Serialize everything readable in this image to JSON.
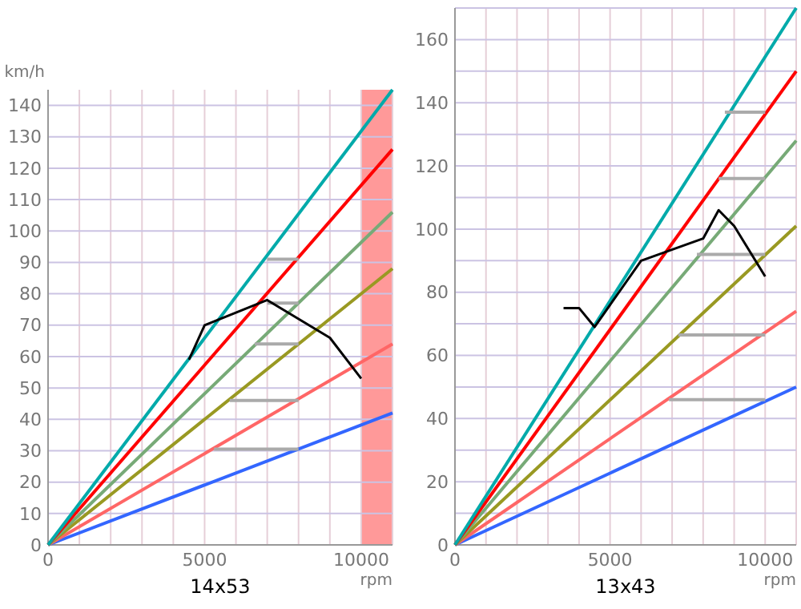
{
  "chart_data": [
    {
      "type": "line",
      "title": "14x53",
      "xlabel": "rpm",
      "ylabel": "km/h",
      "xlim": [
        0,
        11000
      ],
      "ylim": [
        0,
        145
      ],
      "xticks": [
        0,
        {
          "value": 1000,
          "label": null
        },
        {
          "value": 2000,
          "label": null
        },
        {
          "value": 3000,
          "label": null
        },
        {
          "value": 4000,
          "label": null
        },
        5000,
        {
          "value": 6000,
          "label": null
        },
        {
          "value": 7000,
          "label": null
        },
        {
          "value": 8000,
          "label": null
        },
        {
          "value": 9000,
          "label": null
        },
        10000,
        {
          "value": 11000,
          "label": null
        }
      ],
      "yticks": [
        0,
        10,
        20,
        30,
        40,
        50,
        60,
        70,
        80,
        90,
        100,
        110,
        120,
        130,
        140
      ],
      "grid": true,
      "marker": "none",
      "line_style": "solid",
      "bands": [
        {
          "axis": "x",
          "from": 10000,
          "to": 11000,
          "color": "#ff9999"
        }
      ],
      "series": [
        {
          "color": "#3366ff",
          "x": [
            0,
            11000
          ],
          "values": [
            0,
            42
          ]
        },
        {
          "color": "#ff6666",
          "x": [
            0,
            11000
          ],
          "values": [
            0,
            64
          ]
        },
        {
          "color": "#999922",
          "x": [
            0,
            11000
          ],
          "values": [
            0,
            88
          ]
        },
        {
          "color": "#77aa77",
          "x": [
            0,
            11000
          ],
          "values": [
            0,
            106
          ]
        },
        {
          "color": "#ff0000",
          "x": [
            0,
            11000
          ],
          "values": [
            0,
            126
          ]
        },
        {
          "color": "#00aaaa",
          "x": [
            0,
            11000
          ],
          "values": [
            0,
            145
          ]
        },
        {
          "color": "#aaaaaa",
          "x": [
            5300,
            8000
          ],
          "values": [
            30.5,
            30.5
          ]
        },
        {
          "color": "#aaaaaa",
          "x": [
            5800,
            8000
          ],
          "values": [
            46,
            46
          ]
        },
        {
          "color": "#aaaaaa",
          "x": [
            6600,
            8000
          ],
          "values": [
            64,
            64
          ]
        },
        {
          "color": "#aaaaaa",
          "x": [
            7000,
            8000
          ],
          "values": [
            77,
            77
          ]
        },
        {
          "color": "#aaaaaa",
          "x": [
            7000,
            8000
          ],
          "values": [
            91,
            91
          ]
        },
        {
          "color": "#000000",
          "x": [
            4500,
            5000,
            7000,
            9000,
            10000
          ],
          "values": [
            59,
            70,
            78,
            66,
            53
          ]
        }
      ]
    },
    {
      "type": "line",
      "title": "13x43",
      "xlabel": "rpm",
      "xlim": [
        0,
        11000
      ],
      "ylim": [
        0,
        170
      ],
      "xticks": [
        0,
        {
          "value": 1000,
          "label": null
        },
        {
          "value": 2000,
          "label": null
        },
        {
          "value": 3000,
          "label": null
        },
        {
          "value": 4000,
          "label": null
        },
        5000,
        {
          "value": 6000,
          "label": null
        },
        {
          "value": 7000,
          "label": null
        },
        {
          "value": 8000,
          "label": null
        },
        {
          "value": 9000,
          "label": null
        },
        10000,
        {
          "value": 11000,
          "label": null
        }
      ],
      "yticks": [
        0,
        {
          "value": 10,
          "label": null
        },
        20,
        {
          "value": 30,
          "label": null
        },
        40,
        {
          "value": 50,
          "label": null
        },
        60,
        {
          "value": 70,
          "label": null
        },
        80,
        {
          "value": 90,
          "label": null
        },
        100,
        {
          "value": 110,
          "label": null
        },
        120,
        {
          "value": 130,
          "label": null
        },
        140,
        {
          "value": 150,
          "label": null
        },
        160,
        {
          "value": 170,
          "label": null
        }
      ],
      "grid": true,
      "marker": "none",
      "line_style": "solid",
      "series": [
        {
          "color": "#3366ff",
          "x": [
            0,
            11000
          ],
          "values": [
            0,
            50
          ]
        },
        {
          "color": "#ff6666",
          "x": [
            0,
            11000
          ],
          "values": [
            0,
            74
          ]
        },
        {
          "color": "#999922",
          "x": [
            0,
            11000
          ],
          "values": [
            0,
            101
          ]
        },
        {
          "color": "#77aa77",
          "x": [
            0,
            11000
          ],
          "values": [
            0,
            128
          ]
        },
        {
          "color": "#ff0000",
          "x": [
            0,
            11000
          ],
          "values": [
            0,
            150
          ]
        },
        {
          "color": "#00aaaa",
          "x": [
            0,
            11000
          ],
          "values": [
            0,
            170
          ]
        },
        {
          "color": "#aaaaaa",
          "x": [
            6900,
            10000
          ],
          "values": [
            46,
            46
          ]
        },
        {
          "color": "#aaaaaa",
          "x": [
            7200,
            10000
          ],
          "values": [
            66.5,
            66.5
          ]
        },
        {
          "color": "#aaaaaa",
          "x": [
            7800,
            10000
          ],
          "values": [
            92,
            92
          ]
        },
        {
          "color": "#aaaaaa",
          "x": [
            8500,
            10000
          ],
          "values": [
            116,
            116
          ]
        },
        {
          "color": "#aaaaaa",
          "x": [
            8700,
            10000
          ],
          "values": [
            137,
            137
          ]
        },
        {
          "color": "#000000",
          "x": [
            3500,
            4000,
            4500,
            6000,
            8000,
            8500,
            9000,
            10000
          ],
          "values": [
            75,
            75,
            69,
            90,
            97,
            106,
            101,
            85
          ]
        }
      ]
    }
  ]
}
